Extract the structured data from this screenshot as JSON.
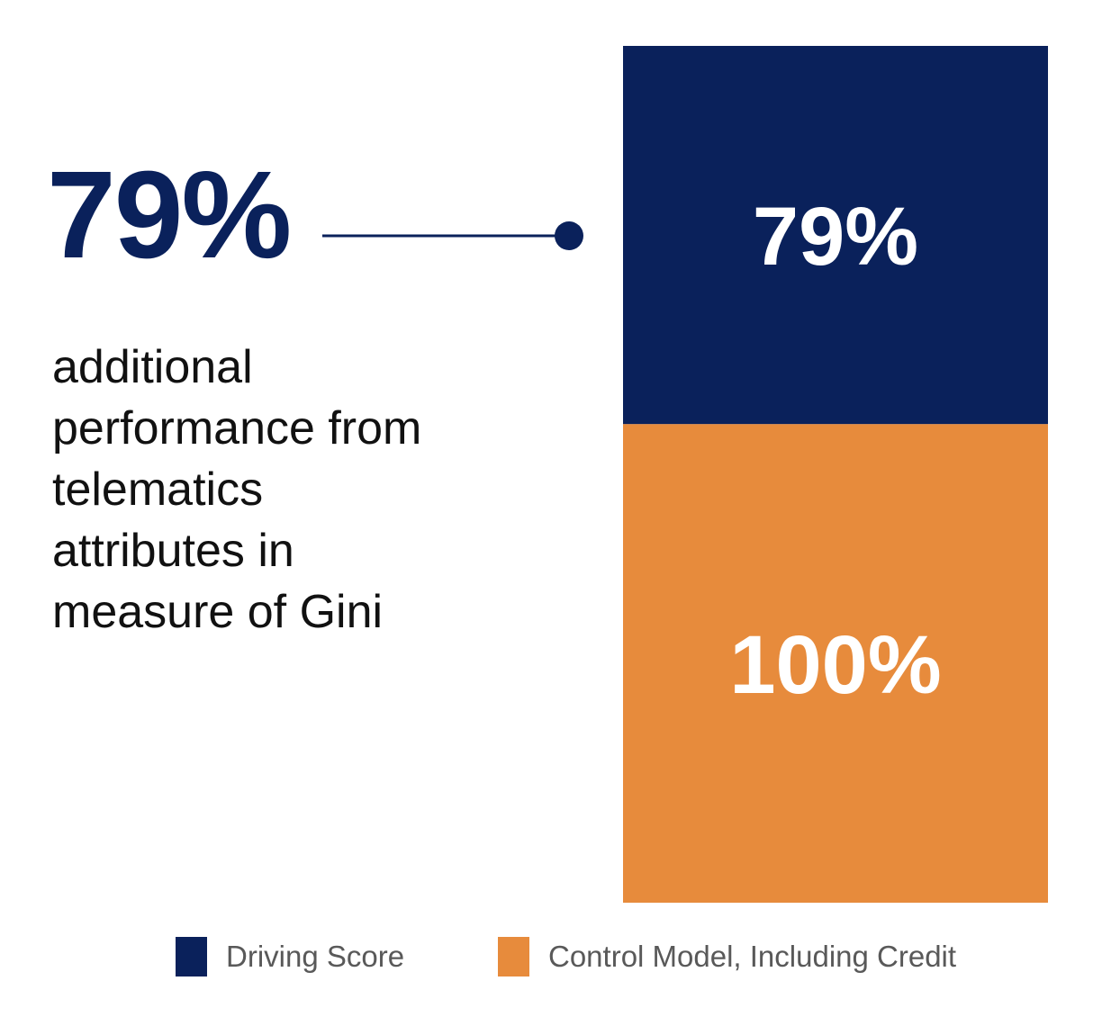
{
  "headline": {
    "value": "79%",
    "color": "#0a215b"
  },
  "callout_text": "additional performance from telematics attributes in measure of Gini",
  "colors": {
    "text_dark": "#111111",
    "connector": "#0a215b",
    "bar_label": "#ffffff",
    "legend_text": "#595959"
  },
  "chart_data": {
    "type": "bar",
    "stacked": true,
    "categories": [
      ""
    ],
    "series": [
      {
        "name": "Driving Score",
        "values": [
          79
        ],
        "label": "79%",
        "color": "#0a215b"
      },
      {
        "name": "Control Model, Including Credit",
        "values": [
          100
        ],
        "label": "100%",
        "color": "#e78b3c"
      }
    ],
    "title": "",
    "xlabel": "",
    "ylabel": "",
    "ylim": [
      0,
      179
    ],
    "grid": false,
    "legend_position": "bottom"
  }
}
